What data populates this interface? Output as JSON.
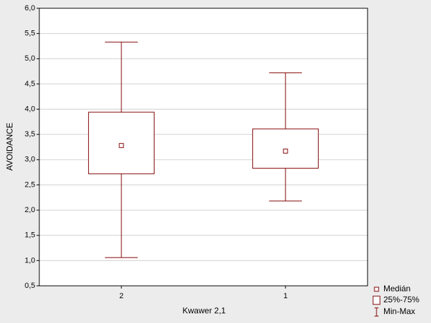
{
  "chart_data": {
    "type": "box",
    "x_label": "Kwawer 2,1",
    "y_label": "AVOIDANCE",
    "categories": [
      "2",
      "1"
    ],
    "min": [
      1.06,
      2.18
    ],
    "q1": [
      2.72,
      2.83
    ],
    "median": [
      3.28,
      3.17
    ],
    "q3": [
      3.94,
      3.61
    ],
    "max": [
      5.33,
      4.72
    ],
    "color": "#800000",
    "legend": [
      "Medián",
      "25%-75%",
      "Min-Max"
    ],
    "ylim": [
      0.5,
      6.0
    ],
    "yticks": [
      {
        "value": 0.5,
        "label": "0,5"
      },
      {
        "value": 1.0,
        "label": "1,0"
      },
      {
        "value": 1.5,
        "label": "1,5"
      },
      {
        "value": 2.0,
        "label": "2,0"
      },
      {
        "value": 2.5,
        "label": "2,5"
      },
      {
        "value": 3.0,
        "label": "3,0"
      },
      {
        "value": 3.5,
        "label": "3,5"
      },
      {
        "value": 4.0,
        "label": "4,0"
      },
      {
        "value": 4.5,
        "label": "4,5"
      },
      {
        "value": 5.0,
        "label": "5,0"
      },
      {
        "value": 5.5,
        "label": "5,5"
      },
      {
        "value": 6.0,
        "label": "6,0"
      }
    ],
    "grid": true
  }
}
